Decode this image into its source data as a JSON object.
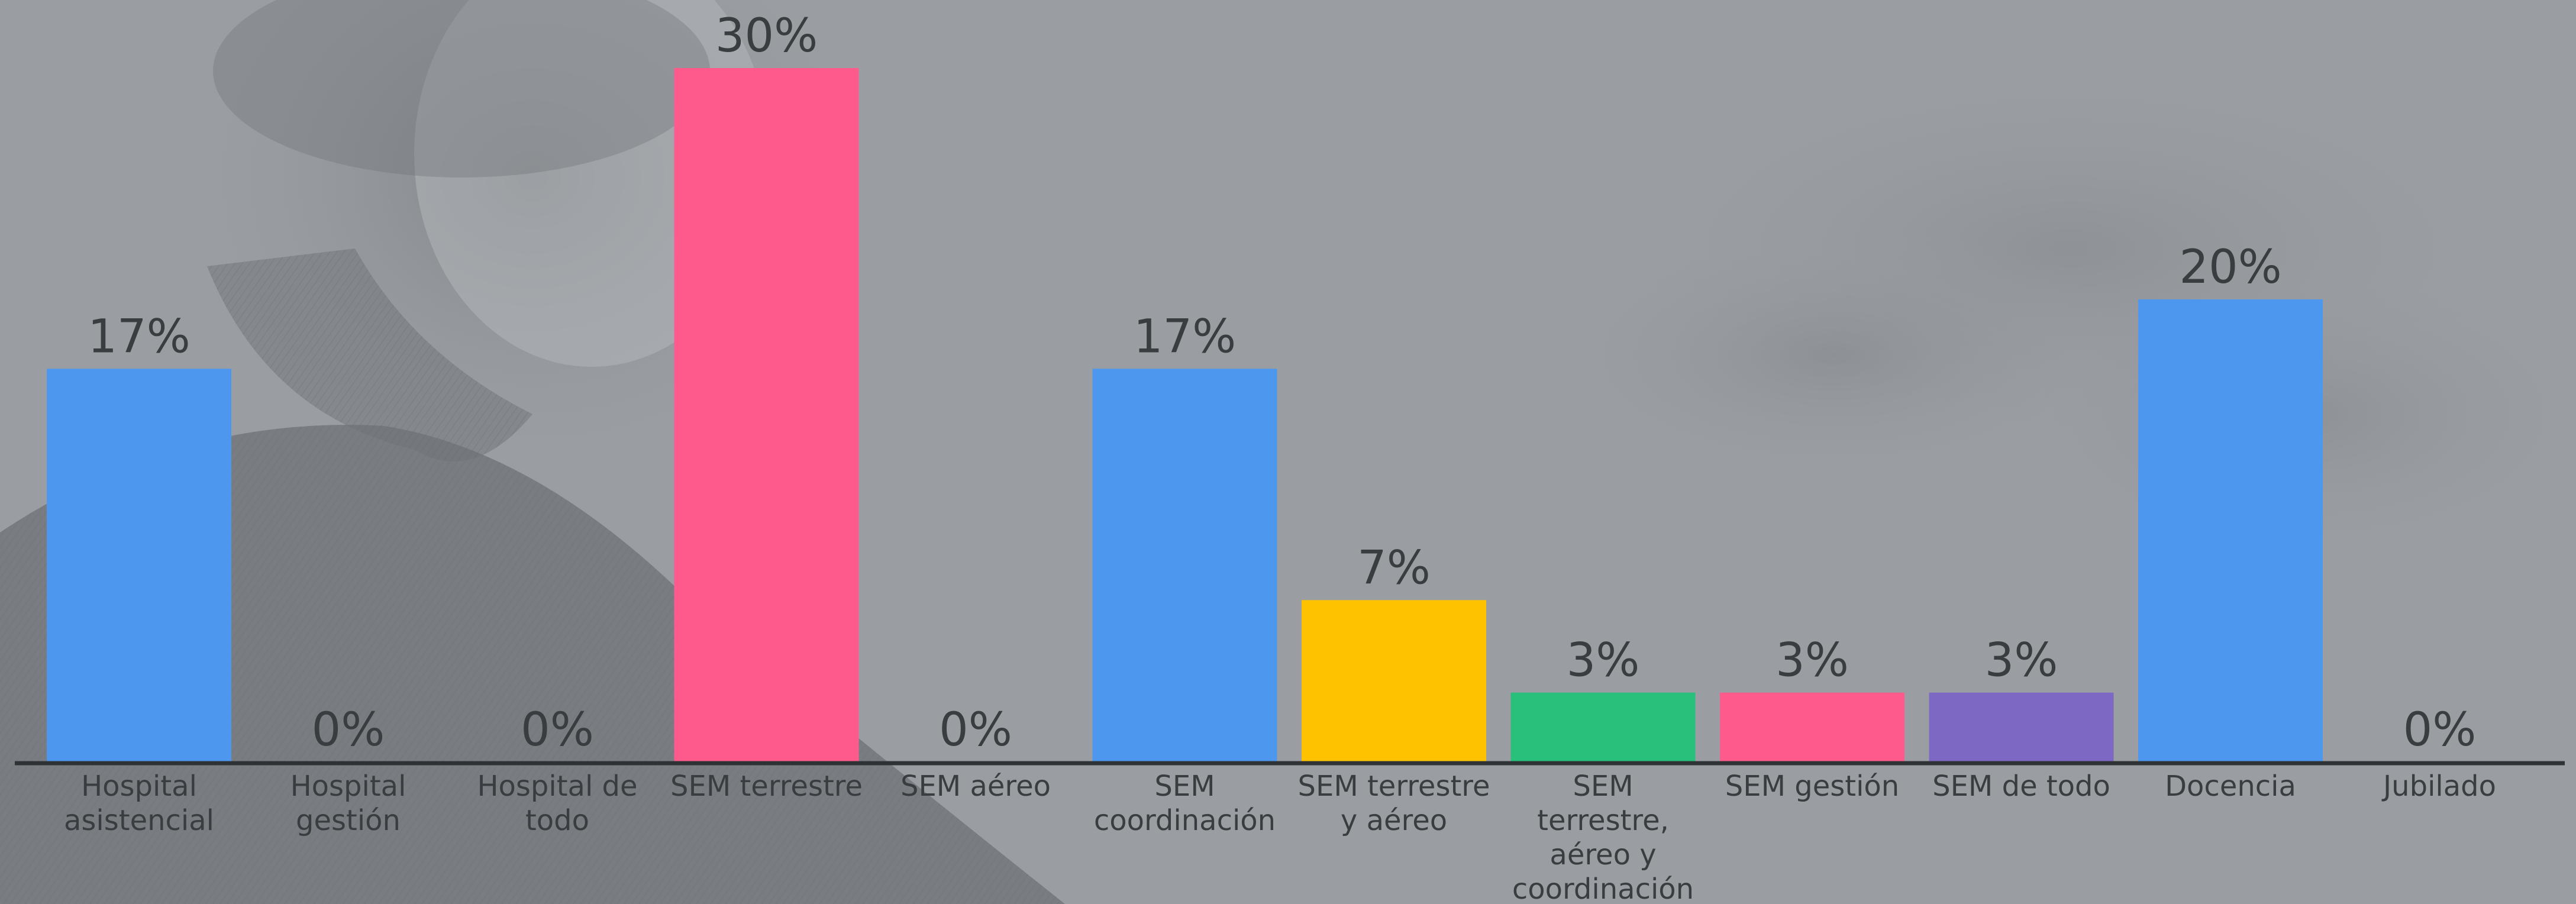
{
  "chart_data": {
    "type": "bar",
    "categories": [
      [
        "Hospital",
        "asistencial"
      ],
      [
        "Hospital",
        "gestión"
      ],
      [
        "Hospital de",
        "todo"
      ],
      [
        "SEM terrestre"
      ],
      [
        "SEM aéreo"
      ],
      [
        "SEM",
        "coordinación"
      ],
      [
        "SEM terrestre",
        "y aéreo"
      ],
      [
        "SEM",
        "terrestre,",
        "aéreo y",
        "coordinación"
      ],
      [
        "SEM gestión"
      ],
      [
        "SEM de todo"
      ],
      [
        "Docencia"
      ],
      [
        "Jubilado"
      ]
    ],
    "values": [
      17,
      0,
      0,
      30,
      0,
      17,
      7,
      3,
      3,
      3,
      20,
      0
    ],
    "value_labels": [
      "17%",
      "0%",
      "0%",
      "30%",
      "0%",
      "17%",
      "7%",
      "3%",
      "3%",
      "3%",
      "20%",
      "0%"
    ],
    "bar_colors": [
      "#4e97ee",
      "#4e97ee",
      "#4e97ee",
      "#ff5a8c",
      "#ff5a8c",
      "#4e97ee",
      "#ffc200",
      "#28c07a",
      "#ff5a8c",
      "#7d68c4",
      "#4e97ee",
      "#4e97ee"
    ],
    "ylim": [
      0,
      30
    ],
    "grid": false,
    "legend": "none",
    "title": "",
    "xlabel": "",
    "ylabel": "",
    "axis_color": "#2f3235",
    "text_color": "#3a3d40"
  }
}
